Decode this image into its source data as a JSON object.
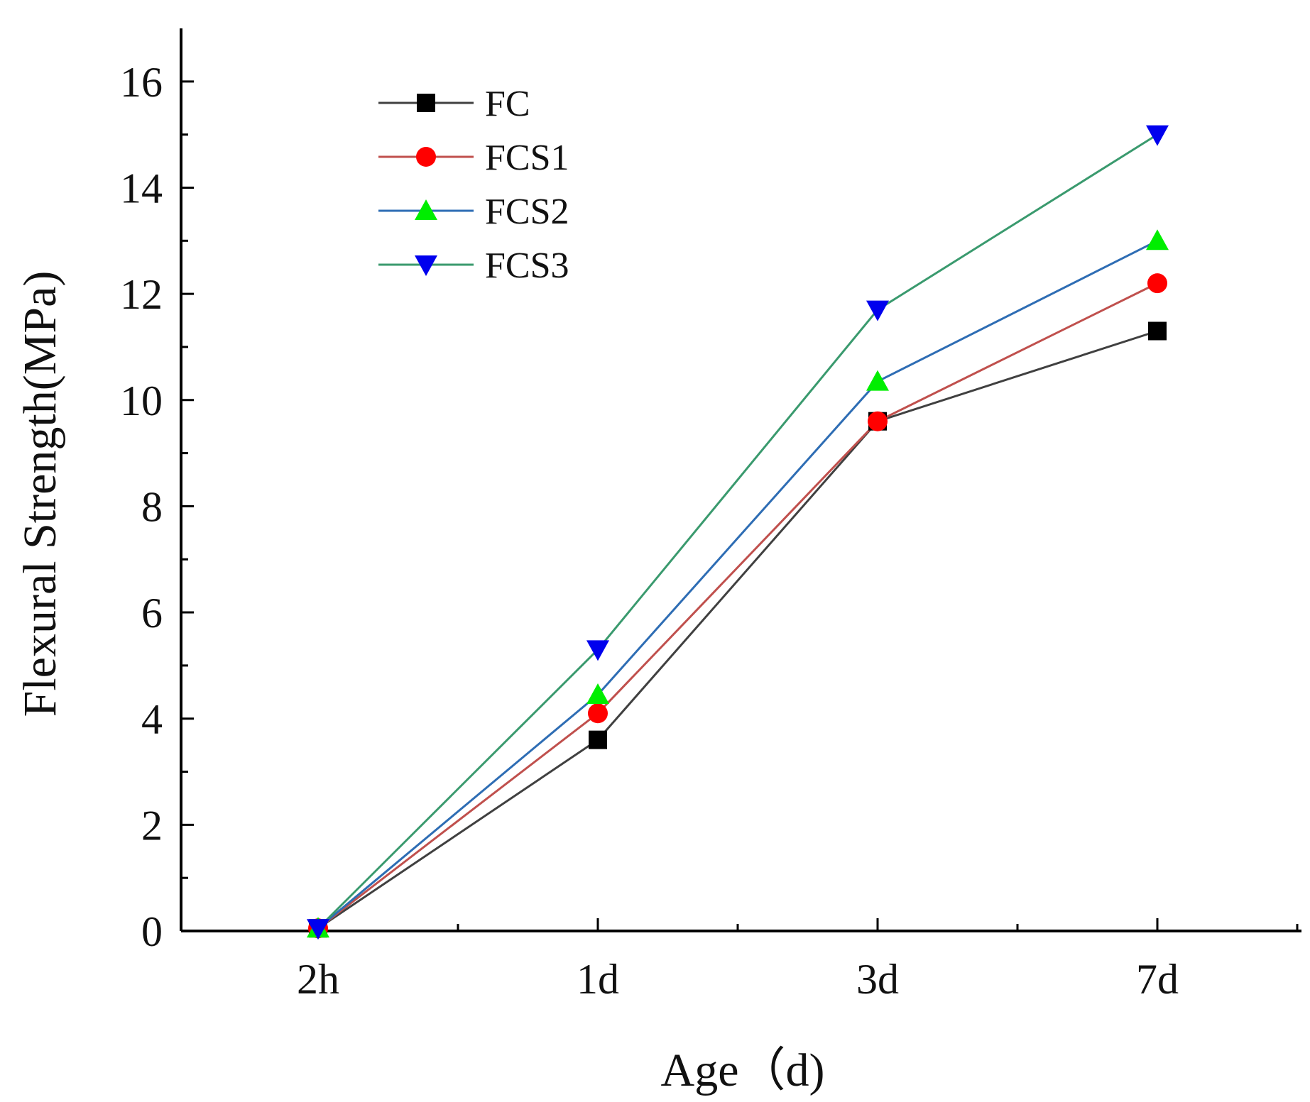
{
  "chart_data": {
    "type": "line",
    "xlabel": "Age（d)",
    "ylabel": "Flexural Strength(MPa)",
    "categories": [
      "2h",
      "1d",
      "3d",
      "7d"
    ],
    "ylim": [
      0,
      17
    ],
    "yticks": [
      0,
      2,
      4,
      6,
      8,
      10,
      12,
      14,
      16
    ],
    "grid": false,
    "legend_position": "top-left",
    "series": [
      {
        "name": "FC",
        "values": [
          0.05,
          3.6,
          9.6,
          11.3
        ],
        "line_color": "#404040",
        "marker_color": "#000000",
        "marker": "square"
      },
      {
        "name": "FCS1",
        "values": [
          0.05,
          4.1,
          9.6,
          12.2
        ],
        "line_color": "#c0504d",
        "marker_color": "#ff0000",
        "marker": "circle"
      },
      {
        "name": "FCS2",
        "values": [
          0.05,
          4.45,
          10.35,
          13.0
        ],
        "line_color": "#2e6db4",
        "marker_color": "#00ee00",
        "marker": "triangle-up"
      },
      {
        "name": "FCS3",
        "values": [
          0.05,
          5.3,
          11.7,
          15.0
        ],
        "line_color": "#3a9a6e",
        "marker_color": "#0000ee",
        "marker": "triangle-down"
      }
    ]
  }
}
